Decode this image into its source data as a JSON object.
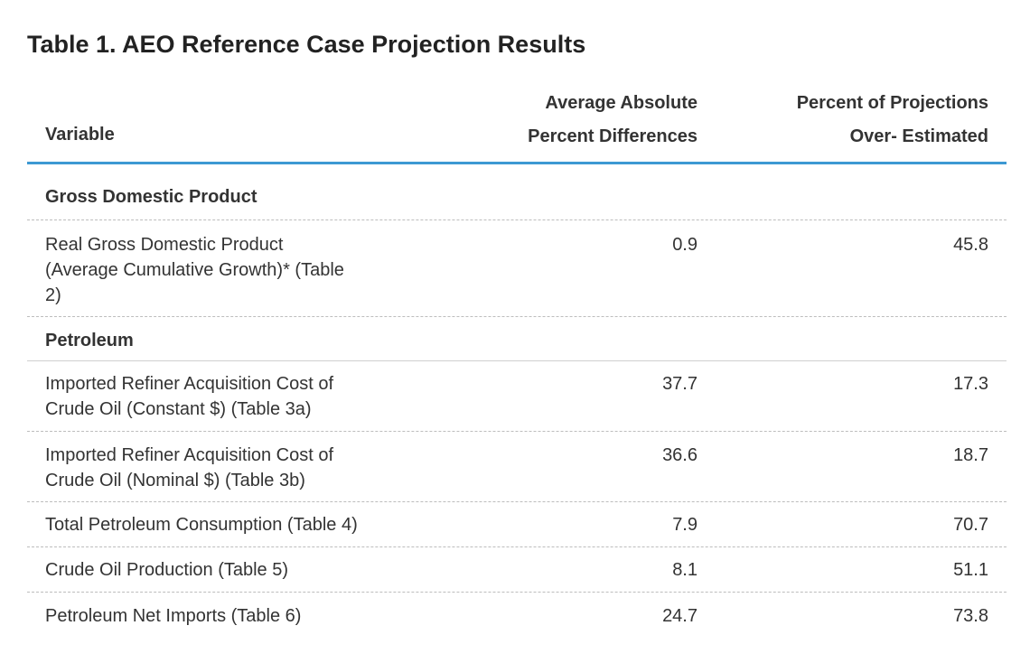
{
  "title": "Table 1. AEO Reference Case Projection Results",
  "columns": {
    "variable": "Variable",
    "avg_line1": "Average Absolute",
    "avg_line2": "Percent Differences",
    "pct_line1": "Percent of Projections",
    "pct_line2": "Over- Estimated"
  },
  "sections": [
    {
      "label": "Gross Domestic Product",
      "rows": [
        {
          "variable_line1": "Real Gross Domestic Product",
          "variable_line2": "(Average Cumulative Growth)* (Table",
          "variable_line3": "2)",
          "avg_abs_pct_diff": "0.9",
          "pct_over_estimated": "45.8"
        }
      ]
    },
    {
      "label": "Petroleum",
      "rows": [
        {
          "variable_line1": "Imported Refiner Acquisition Cost of",
          "variable_line2": "Crude Oil (Constant $) (Table 3a)",
          "avg_abs_pct_diff": "37.7",
          "pct_over_estimated": "17.3"
        },
        {
          "variable_line1": "Imported Refiner Acquisition Cost of",
          "variable_line2": "Crude Oil (Nominal $) (Table 3b)",
          "avg_abs_pct_diff": "36.6",
          "pct_over_estimated": "18.7"
        },
        {
          "variable_line1": "Total Petroleum Consumption (Table 4)",
          "avg_abs_pct_diff": "7.9",
          "pct_over_estimated": "70.7"
        },
        {
          "variable_line1": "Crude Oil Production (Table 5)",
          "avg_abs_pct_diff": "8.1",
          "pct_over_estimated": "51.1"
        },
        {
          "variable_line1": "Petroleum Net Imports (Table 6)",
          "avg_abs_pct_diff": "24.7",
          "pct_over_estimated": "73.8"
        }
      ]
    }
  ]
}
